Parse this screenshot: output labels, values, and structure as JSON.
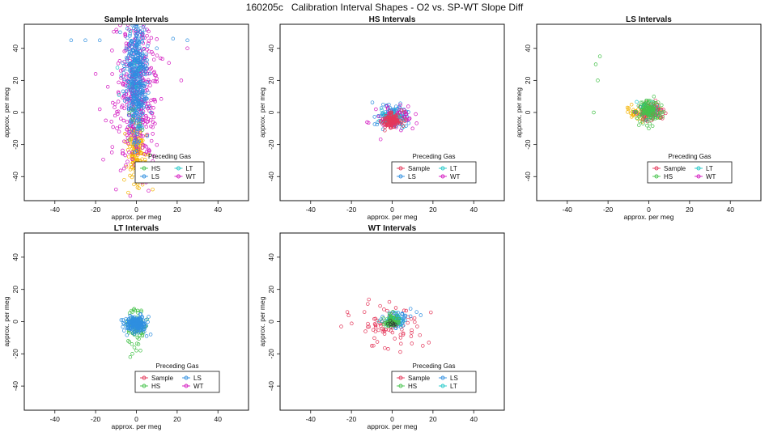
{
  "figure": {
    "title": "160205c   Calibration Interval Shapes - O2 vs. SP-WT Slope Diff"
  },
  "colors": {
    "Sample": "#e4375a",
    "HS": "#45c24a",
    "LS": "#2f8fe0",
    "LT": "#20c8c8",
    "WT": "#d316c0",
    "Orange": "#f4b400"
  },
  "chart_data": [
    {
      "type": "scatter",
      "title": "Sample Intervals",
      "xlabel": "approx. per meg",
      "ylabel": "approx. per meg",
      "xlim": [
        -55,
        55
      ],
      "ylim": [
        -55,
        55
      ],
      "xticks": [
        -40,
        -20,
        0,
        20,
        40
      ],
      "yticks": [
        -40,
        -20,
        0,
        20,
        40
      ],
      "legend": {
        "title": "Preceding Gas",
        "position": "bottom-right",
        "entries": [
          {
            "label": "HS",
            "color_key": "HS"
          },
          {
            "label": "LT",
            "color_key": "LT"
          },
          {
            "label": "LS",
            "color_key": "LS"
          },
          {
            "label": "WT",
            "color_key": "WT"
          }
        ]
      },
      "series": [
        {
          "color_key": "Orange",
          "n": 160,
          "cx": 0,
          "cy": -24,
          "sx": 2.2,
          "sy": 9,
          "extra": [
            [
              8,
              -48
            ],
            [
              -6,
              -42
            ],
            [
              -4,
              -50
            ],
            [
              3,
              -45
            ]
          ]
        },
        {
          "color_key": "WT",
          "n": 420,
          "cx": 0,
          "cy": 15,
          "sx": 5,
          "sy": 24,
          "extra": [
            [
              -20,
              24
            ],
            [
              -18,
              2
            ],
            [
              22,
              20
            ],
            [
              25,
              40
            ],
            [
              -14,
              16
            ],
            [
              12,
              -38
            ],
            [
              -10,
              -48
            ],
            [
              -3,
              -52
            ],
            [
              6,
              -25
            ],
            [
              -15,
              -5
            ]
          ]
        },
        {
          "color_key": "LS",
          "n": 450,
          "cx": 0,
          "cy": 22,
          "sx": 2.5,
          "sy": 18,
          "extra": [
            [
              -32,
              45
            ],
            [
              18,
              46
            ],
            [
              25,
              45
            ],
            [
              -18,
              45
            ],
            [
              -25,
              45
            ],
            [
              10,
              40
            ],
            [
              -8,
              50
            ]
          ]
        },
        {
          "color_key": "LT",
          "n": 10,
          "cx": 0,
          "cy": 30,
          "sx": 4,
          "sy": 15,
          "extra": []
        },
        {
          "color_key": "HS",
          "n": 6,
          "cx": 0,
          "cy": -10,
          "sx": 2,
          "sy": 10,
          "extra": []
        }
      ]
    },
    {
      "type": "scatter",
      "title": "HS Intervals",
      "xlabel": "approx. per meg",
      "ylabel": "approx. per meg",
      "xlim": [
        -55,
        55
      ],
      "ylim": [
        -55,
        55
      ],
      "xticks": [
        -40,
        -20,
        0,
        20,
        40
      ],
      "yticks": [
        -40,
        -20,
        0,
        20,
        40
      ],
      "legend": {
        "title": "Preceding Gas",
        "position": "bottom-right",
        "entries": [
          {
            "label": "Sample",
            "color_key": "Sample"
          },
          {
            "label": "LT",
            "color_key": "LT"
          },
          {
            "label": "LS",
            "color_key": "LS"
          },
          {
            "label": "WT",
            "color_key": "WT"
          }
        ]
      },
      "series": [
        {
          "color_key": "LS",
          "n": 130,
          "cx": 0,
          "cy": -3,
          "sx": 3.5,
          "sy": 3.5,
          "extra": []
        },
        {
          "color_key": "WT",
          "n": 60,
          "cx": 0,
          "cy": -4,
          "sx": 4.5,
          "sy": 4,
          "extra": [
            [
              -8,
              2
            ],
            [
              10,
              -10
            ],
            [
              7,
              -5
            ]
          ]
        },
        {
          "color_key": "LT",
          "n": 40,
          "cx": 0,
          "cy": -2,
          "sx": 3,
          "sy": 3,
          "extra": []
        },
        {
          "color_key": "Sample",
          "n": 120,
          "cx": 0,
          "cy": -5,
          "sx": 2.5,
          "sy": 2.5,
          "extra": []
        }
      ]
    },
    {
      "type": "scatter",
      "title": "LS Intervals",
      "xlabel": "approx. per meg",
      "ylabel": "approx. per meg",
      "xlim": [
        -55,
        55
      ],
      "ylim": [
        -55,
        55
      ],
      "xticks": [
        -40,
        -20,
        0,
        20,
        40
      ],
      "yticks": [
        -40,
        -20,
        0,
        20,
        40
      ],
      "legend": {
        "title": "Preceding Gas",
        "position": "bottom-right",
        "entries": [
          {
            "label": "Sample",
            "color_key": "Sample"
          },
          {
            "label": "LT",
            "color_key": "LT"
          },
          {
            "label": "HS",
            "color_key": "HS"
          },
          {
            "label": "WT",
            "color_key": "WT"
          }
        ]
      },
      "series": [
        {
          "color_key": "Orange",
          "n": 40,
          "cx": -4,
          "cy": 0,
          "sx": 4,
          "sy": 2.5,
          "extra": [
            [
              -10,
              2
            ],
            [
              -7,
              0
            ]
          ]
        },
        {
          "color_key": "Sample",
          "n": 100,
          "cx": 1,
          "cy": 0,
          "sx": 3,
          "sy": 3,
          "extra": []
        },
        {
          "color_key": "LT",
          "n": 30,
          "cx": 0,
          "cy": 2,
          "sx": 3,
          "sy": 3,
          "extra": []
        },
        {
          "color_key": "WT",
          "n": 10,
          "cx": 0,
          "cy": 0,
          "sx": 3,
          "sy": 3,
          "extra": []
        },
        {
          "color_key": "HS",
          "n": 120,
          "cx": 0,
          "cy": 1,
          "sx": 3,
          "sy": 3.5,
          "extra": [
            [
              -24,
              35
            ],
            [
              -26,
              30
            ],
            [
              -25,
              20
            ],
            [
              -27,
              0
            ],
            [
              0,
              -10
            ]
          ]
        }
      ]
    },
    {
      "type": "scatter",
      "title": "LT Intervals",
      "xlabel": "approx. per meg",
      "ylabel": "approx. per meg",
      "xlim": [
        -55,
        55
      ],
      "ylim": [
        -55,
        55
      ],
      "xticks": [
        -40,
        -20,
        0,
        20,
        40
      ],
      "yticks": [
        -40,
        -20,
        0,
        20,
        40
      ],
      "legend": {
        "title": "Preceding Gas",
        "position": "bottom-right",
        "entries": [
          {
            "label": "Sample",
            "color_key": "Sample"
          },
          {
            "label": "LS",
            "color_key": "LS"
          },
          {
            "label": "HS",
            "color_key": "HS"
          },
          {
            "label": "WT",
            "color_key": "WT"
          }
        ]
      },
      "series": [
        {
          "color_key": "HS",
          "n": 70,
          "cx": 0,
          "cy": -3,
          "sx": 2.5,
          "sy": 5,
          "extra": [
            [
              -2,
              -20
            ],
            [
              -3,
              -22
            ],
            [
              0,
              -18
            ],
            [
              2,
              -18
            ],
            [
              -1,
              -16
            ],
            [
              1,
              -14
            ],
            [
              3,
              -8
            ],
            [
              -4,
              -12
            ]
          ]
        },
        {
          "color_key": "LS",
          "n": 220,
          "cx": 0,
          "cy": -1,
          "sx": 2.3,
          "sy": 2.3,
          "extra": [
            [
              6,
              3
            ],
            [
              5,
              -9
            ],
            [
              7,
              -8
            ]
          ]
        }
      ]
    },
    {
      "type": "scatter",
      "title": "WT Intervals",
      "xlabel": "approx. per meg",
      "ylabel": "approx. per meg",
      "xlim": [
        -55,
        55
      ],
      "ylim": [
        -55,
        55
      ],
      "xticks": [
        -40,
        -20,
        0,
        20,
        40
      ],
      "yticks": [
        -40,
        -20,
        0,
        20,
        40
      ],
      "legend": {
        "title": "Preceding Gas",
        "position": "bottom-right",
        "entries": [
          {
            "label": "Sample",
            "color_key": "Sample"
          },
          {
            "label": "LS",
            "color_key": "LS"
          },
          {
            "label": "HS",
            "color_key": "HS"
          },
          {
            "label": "LT",
            "color_key": "LT"
          }
        ]
      },
      "series": [
        {
          "color_key": "Sample",
          "n": 85,
          "cx": 0,
          "cy": -3,
          "sx": 8,
          "sy": 5.5,
          "extra": [
            [
              -22,
              6
            ],
            [
              -25,
              -3
            ],
            [
              -12,
              11
            ],
            [
              15,
              -15
            ],
            [
              18,
              -13
            ],
            [
              -2,
              -17
            ],
            [
              -10,
              -15
            ]
          ]
        },
        {
          "color_key": "LS",
          "n": 80,
          "cx": 2,
          "cy": 1,
          "sx": 3,
          "sy": 2.5,
          "extra": [
            [
              12,
              6
            ],
            [
              14,
              4
            ],
            [
              9,
              8
            ]
          ]
        },
        {
          "color_key": "LT",
          "n": 30,
          "cx": 1,
          "cy": 1,
          "sx": 2.5,
          "sy": 2,
          "extra": []
        },
        {
          "color_key": "HS",
          "n": 60,
          "cx": 0,
          "cy": 0,
          "sx": 2,
          "sy": 1.8,
          "extra": []
        },
        {
          "color_key": "Ink",
          "n": 8,
          "cx": 0,
          "cy": -2,
          "sx": 2,
          "sy": 1.5,
          "extra": []
        }
      ]
    }
  ]
}
